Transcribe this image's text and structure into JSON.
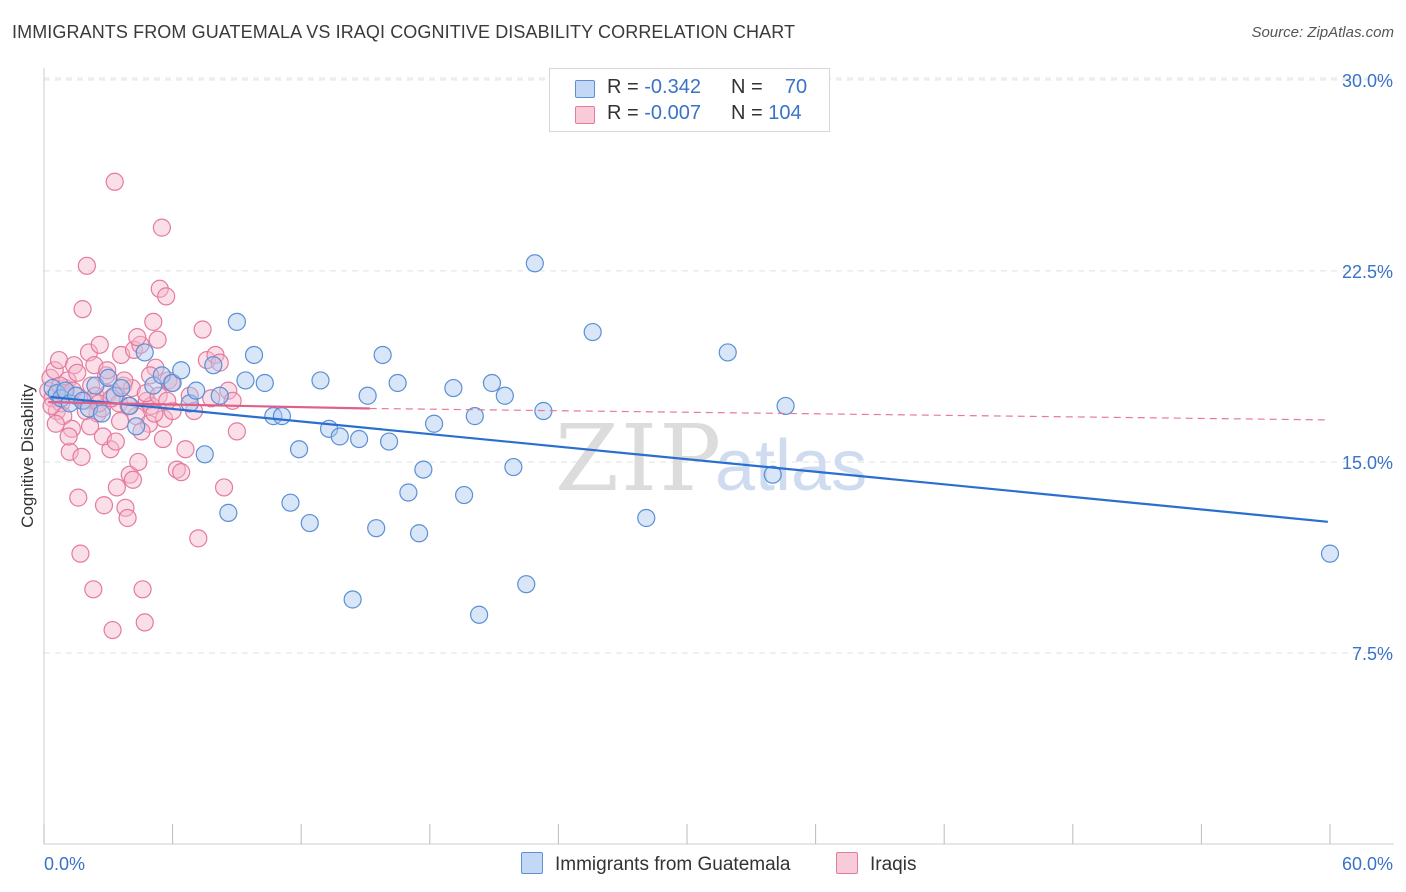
{
  "title": "IMMIGRANTS FROM GUATEMALA VS IRAQI COGNITIVE DISABILITY CORRELATION CHART",
  "source": "Source: ZipAtlas.com",
  "watermark": {
    "zip": "ZIP",
    "atlas": "atlas"
  },
  "legend": {
    "series1": {
      "r_label": "R = ",
      "r_value": "-0.342",
      "n_label": "N = ",
      "n_value": "70"
    },
    "series2": {
      "r_label": "R = ",
      "r_value": "-0.007",
      "n_label": "N = ",
      "n_value": "104"
    }
  },
  "colors": {
    "blue_fill": "#a8c8f0",
    "blue_stroke": "#5b8fd6",
    "blue_line": "#2a6fd0",
    "pink_fill": "#f5b8cc",
    "pink_stroke": "#e57a9e",
    "pink_line": "#e0608a",
    "axis_label": "#3a72c8",
    "grid": "#e0e0e0"
  },
  "chart_data": {
    "type": "scatter",
    "title": "IMMIGRANTS FROM GUATEMALA VS IRAQI COGNITIVE DISABILITY CORRELATION CHART",
    "xlabel": "",
    "ylabel": "Cognitive Disability",
    "xlim": [
      0,
      60
    ],
    "ylim": [
      0,
      32
    ],
    "x_tick_labels": [
      "0.0%",
      "60.0%"
    ],
    "y_ticks": [
      7.5,
      15.0,
      22.5,
      30.0
    ],
    "y_tick_labels": [
      "7.5%",
      "15.0%",
      "22.5%",
      "30.0%"
    ],
    "grid": true,
    "legend_position": "top-center",
    "series": [
      {
        "name": "Immigrants from Guatemala",
        "color": "#5b8fd6",
        "trend": {
          "x": [
            0.3,
            59.9
          ],
          "y": [
            17.55,
            12.65
          ],
          "style": "solid"
        },
        "points": [
          [
            0.4,
            17.9
          ],
          [
            0.6,
            17.7
          ],
          [
            0.8,
            17.5
          ],
          [
            1.0,
            17.8
          ],
          [
            1.2,
            17.3
          ],
          [
            1.5,
            17.6
          ],
          [
            1.8,
            17.4
          ],
          [
            2.1,
            17.1
          ],
          [
            2.4,
            18.0
          ],
          [
            2.7,
            16.9
          ],
          [
            3.0,
            18.3
          ],
          [
            3.3,
            17.6
          ],
          [
            3.6,
            17.9
          ],
          [
            4.0,
            17.2
          ],
          [
            4.3,
            16.4
          ],
          [
            4.7,
            19.3
          ],
          [
            5.1,
            18.0
          ],
          [
            5.5,
            18.4
          ],
          [
            6.0,
            18.1
          ],
          [
            6.4,
            18.6
          ],
          [
            6.8,
            17.3
          ],
          [
            7.1,
            17.8
          ],
          [
            7.5,
            15.3
          ],
          [
            7.9,
            18.8
          ],
          [
            8.2,
            17.6
          ],
          [
            8.6,
            13.0
          ],
          [
            9.0,
            20.5
          ],
          [
            9.4,
            18.2
          ],
          [
            9.8,
            19.2
          ],
          [
            10.3,
            18.1
          ],
          [
            10.7,
            16.8
          ],
          [
            11.1,
            16.8
          ],
          [
            11.5,
            13.4
          ],
          [
            11.9,
            15.5
          ],
          [
            12.4,
            12.6
          ],
          [
            12.9,
            18.2
          ],
          [
            13.3,
            16.3
          ],
          [
            13.8,
            16.0
          ],
          [
            14.4,
            9.6
          ],
          [
            14.7,
            15.9
          ],
          [
            15.1,
            17.6
          ],
          [
            15.5,
            12.4
          ],
          [
            15.8,
            19.2
          ],
          [
            16.1,
            15.8
          ],
          [
            16.5,
            18.1
          ],
          [
            17.0,
            13.8
          ],
          [
            17.5,
            12.2
          ],
          [
            17.7,
            14.7
          ],
          [
            18.2,
            16.5
          ],
          [
            19.1,
            17.9
          ],
          [
            19.6,
            13.7
          ],
          [
            20.1,
            16.8
          ],
          [
            20.3,
            9.0
          ],
          [
            20.9,
            18.1
          ],
          [
            21.5,
            17.6
          ],
          [
            21.9,
            14.8
          ],
          [
            22.5,
            10.2
          ],
          [
            22.9,
            22.8
          ],
          [
            23.3,
            17.0
          ],
          [
            25.6,
            20.1
          ],
          [
            28.1,
            12.8
          ],
          [
            31.9,
            19.3
          ],
          [
            34.0,
            14.5
          ],
          [
            34.6,
            17.2
          ],
          [
            60.0,
            11.4
          ]
        ]
      },
      {
        "name": "Iraqis",
        "color": "#e57a9e",
        "trend": {
          "x": [
            0.2,
            15.2
          ],
          "y": [
            17.35,
            17.1
          ],
          "style": "solid",
          "extended_x": [
            15.2,
            59.9
          ],
          "extended_y": [
            17.1,
            16.65
          ]
        },
        "points": [
          [
            0.2,
            17.8
          ],
          [
            0.3,
            18.3
          ],
          [
            0.4,
            17.5
          ],
          [
            0.5,
            18.6
          ],
          [
            0.6,
            17.0
          ],
          [
            0.7,
            19.0
          ],
          [
            0.8,
            17.3
          ],
          [
            0.9,
            16.8
          ],
          [
            1.0,
            17.9
          ],
          [
            1.1,
            18.2
          ],
          [
            1.2,
            15.4
          ],
          [
            1.3,
            16.3
          ],
          [
            1.4,
            18.8
          ],
          [
            1.5,
            17.6
          ],
          [
            1.6,
            13.6
          ],
          [
            1.7,
            11.4
          ],
          [
            1.8,
            21.0
          ],
          [
            1.9,
            17.4
          ],
          [
            2.0,
            22.7
          ],
          [
            2.1,
            19.3
          ],
          [
            2.2,
            18.0
          ],
          [
            2.3,
            10.0
          ],
          [
            2.4,
            17.6
          ],
          [
            2.5,
            16.9
          ],
          [
            2.6,
            19.6
          ],
          [
            2.7,
            17.1
          ],
          [
            2.8,
            13.3
          ],
          [
            2.9,
            18.4
          ],
          [
            3.0,
            17.7
          ],
          [
            3.1,
            15.5
          ],
          [
            3.2,
            8.4
          ],
          [
            3.3,
            26.0
          ],
          [
            3.4,
            14.0
          ],
          [
            3.5,
            17.3
          ],
          [
            3.6,
            19.2
          ],
          [
            3.7,
            18.0
          ],
          [
            3.8,
            13.2
          ],
          [
            3.9,
            12.8
          ],
          [
            4.0,
            14.5
          ],
          [
            4.1,
            17.9
          ],
          [
            4.2,
            19.4
          ],
          [
            4.3,
            16.8
          ],
          [
            4.4,
            15.0
          ],
          [
            4.5,
            19.6
          ],
          [
            4.6,
            10.0
          ],
          [
            4.7,
            8.7
          ],
          [
            4.8,
            17.4
          ],
          [
            4.9,
            16.5
          ],
          [
            5.0,
            17.2
          ],
          [
            5.1,
            20.5
          ],
          [
            5.2,
            18.7
          ],
          [
            5.3,
            19.8
          ],
          [
            5.4,
            21.8
          ],
          [
            5.5,
            24.2
          ],
          [
            5.6,
            16.7
          ],
          [
            5.7,
            21.5
          ],
          [
            5.8,
            18.2
          ],
          [
            6.0,
            17.0
          ],
          [
            6.2,
            14.7
          ],
          [
            6.4,
            14.6
          ],
          [
            6.6,
            15.5
          ],
          [
            6.8,
            17.6
          ],
          [
            7.0,
            17.0
          ],
          [
            7.2,
            12.0
          ],
          [
            7.4,
            20.2
          ],
          [
            7.6,
            19.0
          ],
          [
            7.8,
            17.5
          ],
          [
            8.0,
            19.2
          ],
          [
            8.2,
            18.9
          ],
          [
            8.4,
            14.0
          ],
          [
            8.6,
            17.8
          ],
          [
            8.8,
            17.4
          ],
          [
            9.0,
            16.2
          ],
          [
            0.35,
            17.2
          ],
          [
            0.55,
            16.5
          ],
          [
            0.75,
            18.0
          ],
          [
            0.95,
            17.7
          ],
          [
            1.15,
            16.0
          ],
          [
            1.35,
            17.8
          ],
          [
            1.55,
            18.5
          ],
          [
            1.75,
            15.2
          ],
          [
            1.95,
            17.0
          ],
          [
            2.15,
            16.4
          ],
          [
            2.35,
            18.8
          ],
          [
            2.55,
            17.3
          ],
          [
            2.75,
            16.0
          ],
          [
            2.95,
            18.6
          ],
          [
            3.15,
            17.5
          ],
          [
            3.35,
            15.8
          ],
          [
            3.55,
            16.6
          ],
          [
            3.75,
            18.2
          ],
          [
            3.95,
            17.2
          ],
          [
            4.15,
            14.3
          ],
          [
            4.35,
            19.9
          ],
          [
            4.55,
            16.2
          ],
          [
            4.75,
            17.7
          ],
          [
            4.95,
            18.4
          ],
          [
            5.15,
            16.9
          ],
          [
            5.35,
            17.6
          ],
          [
            5.55,
            15.9
          ],
          [
            5.75,
            17.4
          ],
          [
            5.95,
            18.1
          ]
        ]
      }
    ]
  },
  "bottom_legend": {
    "item1": "Immigrants from Guatemala",
    "item2": "Iraqis"
  }
}
